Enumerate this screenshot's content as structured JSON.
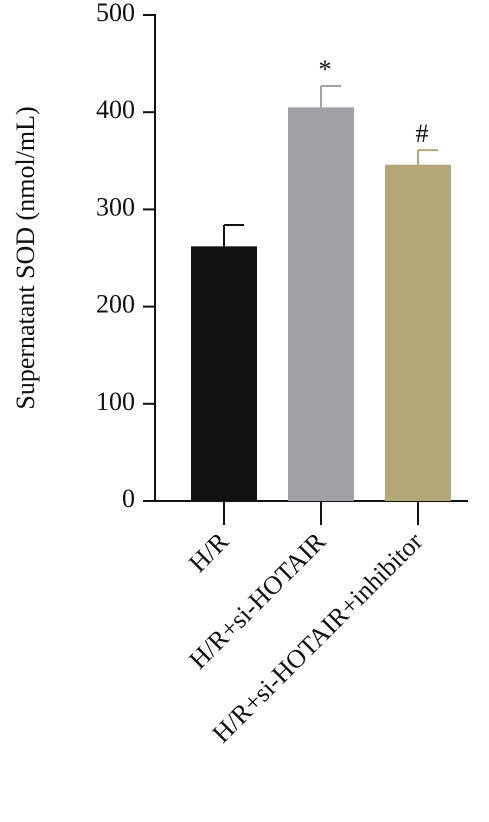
{
  "chart_data": {
    "type": "bar",
    "y_label": "Supernatant SOD (nmol/mL)",
    "categories": [
      "H/R",
      "H/R+si-HOTAIR",
      "H/R+si-HOTAIR+inhibitor"
    ],
    "values": [
      262,
      405,
      346
    ],
    "errors": [
      22,
      22,
      15
    ],
    "colors": [
      "#111111",
      "#a0a1a5",
      "#b5a878"
    ],
    "annotations": [
      null,
      "*",
      "#"
    ],
    "ylim": [
      0,
      500
    ],
    "yticks": [
      0,
      100,
      200,
      300,
      400,
      500
    ]
  }
}
